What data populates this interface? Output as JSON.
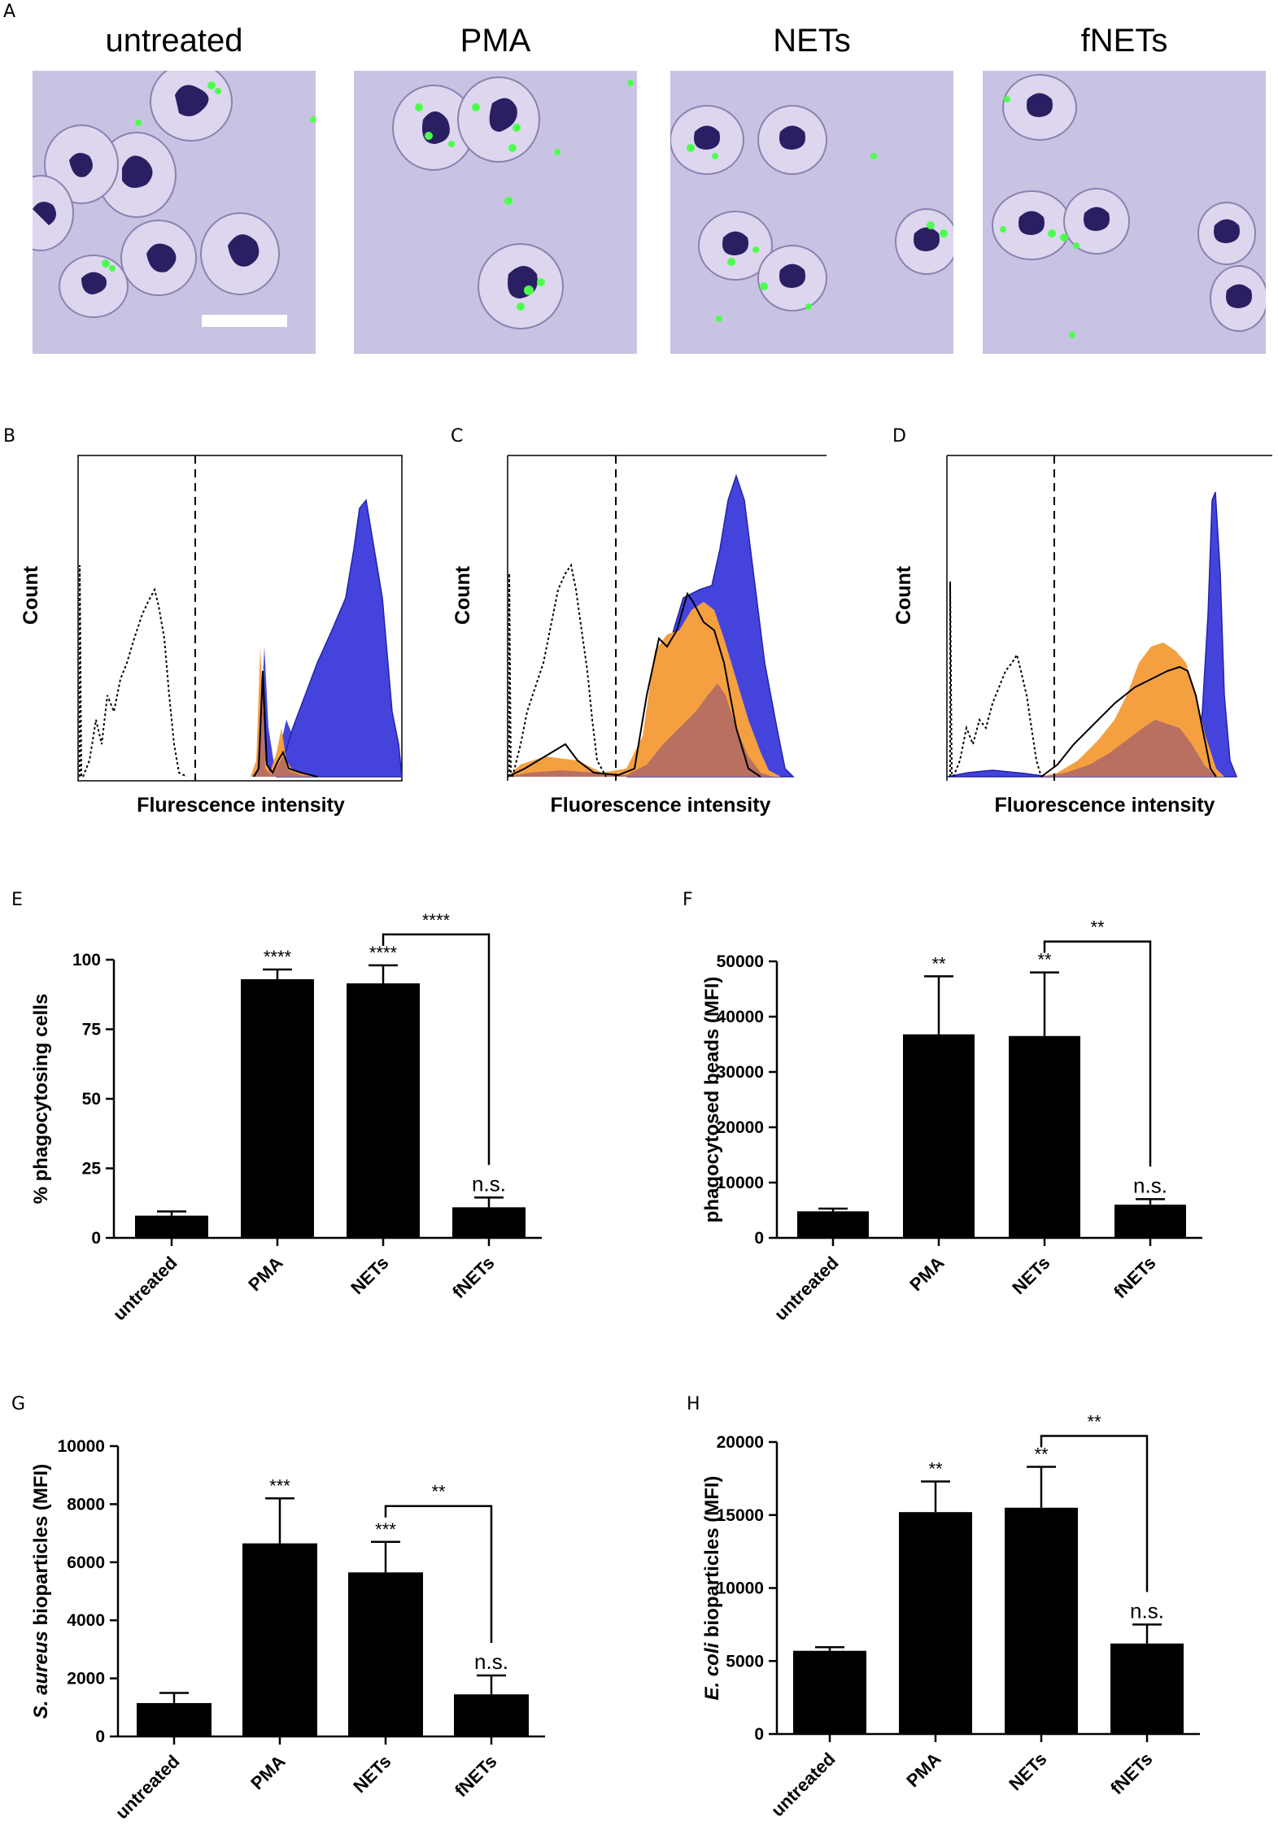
{
  "panel_letters": {
    "A": "A",
    "B": "B",
    "C": "C",
    "D": "D",
    "E": "E",
    "F": "F",
    "G": "G",
    "H": "H"
  },
  "micrographs": {
    "titles": [
      "untreated",
      "PMA",
      "NETs",
      "fNETs"
    ],
    "background": "#c9c3e3",
    "nucleus_color": "#2b1f63",
    "bead_color": "#4dff4d"
  },
  "histograms": {
    "B": {
      "ylabel": "Count",
      "xlabel": "Flurescence intensity"
    },
    "C": {
      "ylabel": "Count",
      "xlabel": "Fluorescence intensity"
    },
    "D": {
      "ylabel": "Count",
      "xlabel": "Fluorescence intensity"
    },
    "colors": {
      "blue": "#4444dd",
      "orange": "#f5a040",
      "brown": "#b97060",
      "black": "#000000"
    }
  },
  "chart_data": [
    {
      "id": "E",
      "type": "bar",
      "categories": [
        "untreated",
        "PMA",
        "NETs",
        "fNETs"
      ],
      "values": [
        8,
        93,
        91.5,
        11
      ],
      "errors": [
        1.5,
        3.5,
        6.5,
        3.5
      ],
      "ylabel": "% phagocytosing cells",
      "ylim": [
        0,
        100
      ],
      "yticks": [
        0,
        25,
        50,
        75,
        100
      ],
      "yticklabels": [
        "0",
        "25",
        "50",
        "75",
        "100"
      ],
      "significance": [
        "",
        "****",
        "****",
        "n.s."
      ],
      "bracket": {
        "from": "NETs",
        "to": "fNETs",
        "label": "****"
      }
    },
    {
      "id": "F",
      "type": "bar",
      "categories": [
        "untreated",
        "PMA",
        "NETs",
        "fNETs"
      ],
      "values": [
        4800,
        36800,
        36500,
        6000
      ],
      "errors": [
        500,
        10500,
        11500,
        1000
      ],
      "ylabel": "phagocytosed beads (MFI)",
      "ylim": [
        0,
        50000
      ],
      "yticks": [
        0,
        10000,
        20000,
        30000,
        40000,
        50000
      ],
      "yticklabels": [
        "0",
        "10000",
        "20000",
        "30000",
        "40000",
        "50000"
      ],
      "significance": [
        "",
        "**",
        "**",
        "n.s."
      ],
      "bracket": {
        "from": "NETs",
        "to": "fNETs",
        "label": "**"
      }
    },
    {
      "id": "G",
      "type": "bar",
      "categories": [
        "untreated",
        "PMA",
        "NETs",
        "fNETs"
      ],
      "values": [
        1150,
        6650,
        5650,
        1450
      ],
      "errors": [
        350,
        1550,
        1050,
        650
      ],
      "ylabel_italic": "S. aureus",
      "ylabel_rest": " bioparticles (MFI)",
      "ylim": [
        0,
        10000
      ],
      "yticks": [
        0,
        2000,
        4000,
        6000,
        8000,
        10000
      ],
      "yticklabels": [
        "0",
        "2000",
        "4000",
        "6000",
        "8000",
        "10000"
      ],
      "significance": [
        "",
        "***",
        "***",
        "n.s."
      ],
      "bracket": {
        "from": "NETs",
        "to": "fNETs",
        "label": "**"
      }
    },
    {
      "id": "H",
      "type": "bar",
      "categories": [
        "untreated",
        "PMA",
        "NETs",
        "fNETs"
      ],
      "values": [
        5700,
        15200,
        15500,
        6200
      ],
      "errors": [
        250,
        2100,
        2800,
        1300
      ],
      "ylabel_italic": "E. coli",
      "ylabel_rest": " bioparticles (MFI)",
      "ylim": [
        0,
        20000
      ],
      "yticks": [
        0,
        5000,
        10000,
        15000,
        20000
      ],
      "yticklabels": [
        "0",
        "5000",
        "10000",
        "15000",
        "20000"
      ],
      "significance": [
        "",
        "**",
        "**",
        "n.s."
      ],
      "bracket": {
        "from": "NETs",
        "to": "fNETs",
        "label": "**"
      }
    }
  ]
}
